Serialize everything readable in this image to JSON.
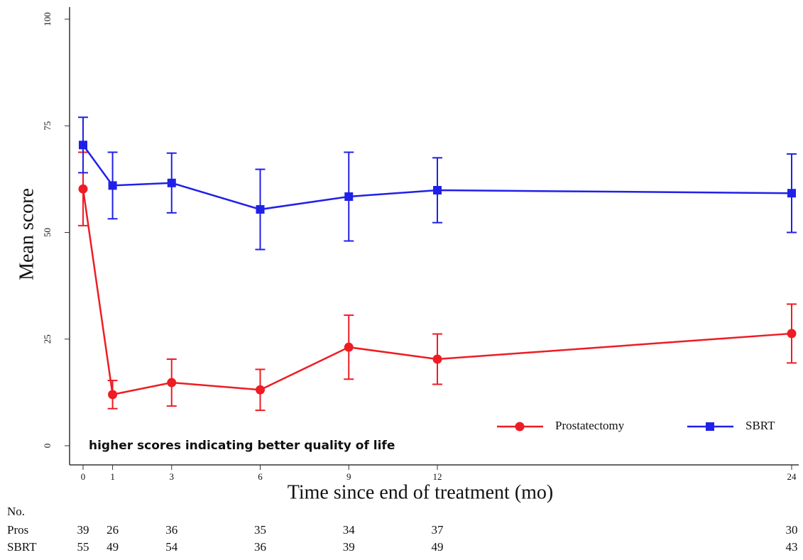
{
  "chart_data": {
    "type": "line",
    "y_label": "Mean score",
    "x_label": "Time since end of treatment (mo)",
    "annotation": "higher scores indicating better quality of life",
    "x": [
      0,
      1,
      3,
      6,
      9,
      12,
      24
    ],
    "xlim": [
      0,
      24
    ],
    "xticks": [
      0,
      1,
      3,
      6,
      9,
      12,
      24
    ],
    "ylim": [
      0,
      100
    ],
    "yticks": [
      0,
      25,
      50,
      75,
      100
    ],
    "legend": "lower right",
    "series": [
      {
        "name": "Prostatectomy",
        "color": "#ee1c24",
        "marker": "circle",
        "values": [
          60.2,
          12,
          14.8,
          13.1,
          23.1,
          20.3,
          26.3
        ],
        "errors": [
          8.6,
          3.3,
          5.5,
          4.8,
          7.5,
          5.9,
          6.9
        ]
      },
      {
        "name": "SBRT",
        "color": "#2020e8",
        "marker": "square",
        "values": [
          70.5,
          61,
          61.6,
          55.4,
          58.4,
          59.9,
          59.2
        ],
        "errors": [
          6.5,
          7.8,
          7,
          9.4,
          10.4,
          7.6,
          9.2
        ]
      }
    ],
    "risk_table": {
      "title": "No.",
      "rows": [
        {
          "name": "Pros",
          "values": [
            39,
            26,
            36,
            35,
            34,
            37,
            30
          ]
        },
        {
          "name": "SBRT",
          "values": [
            55,
            49,
            54,
            36,
            39,
            49,
            43
          ]
        }
      ]
    }
  }
}
